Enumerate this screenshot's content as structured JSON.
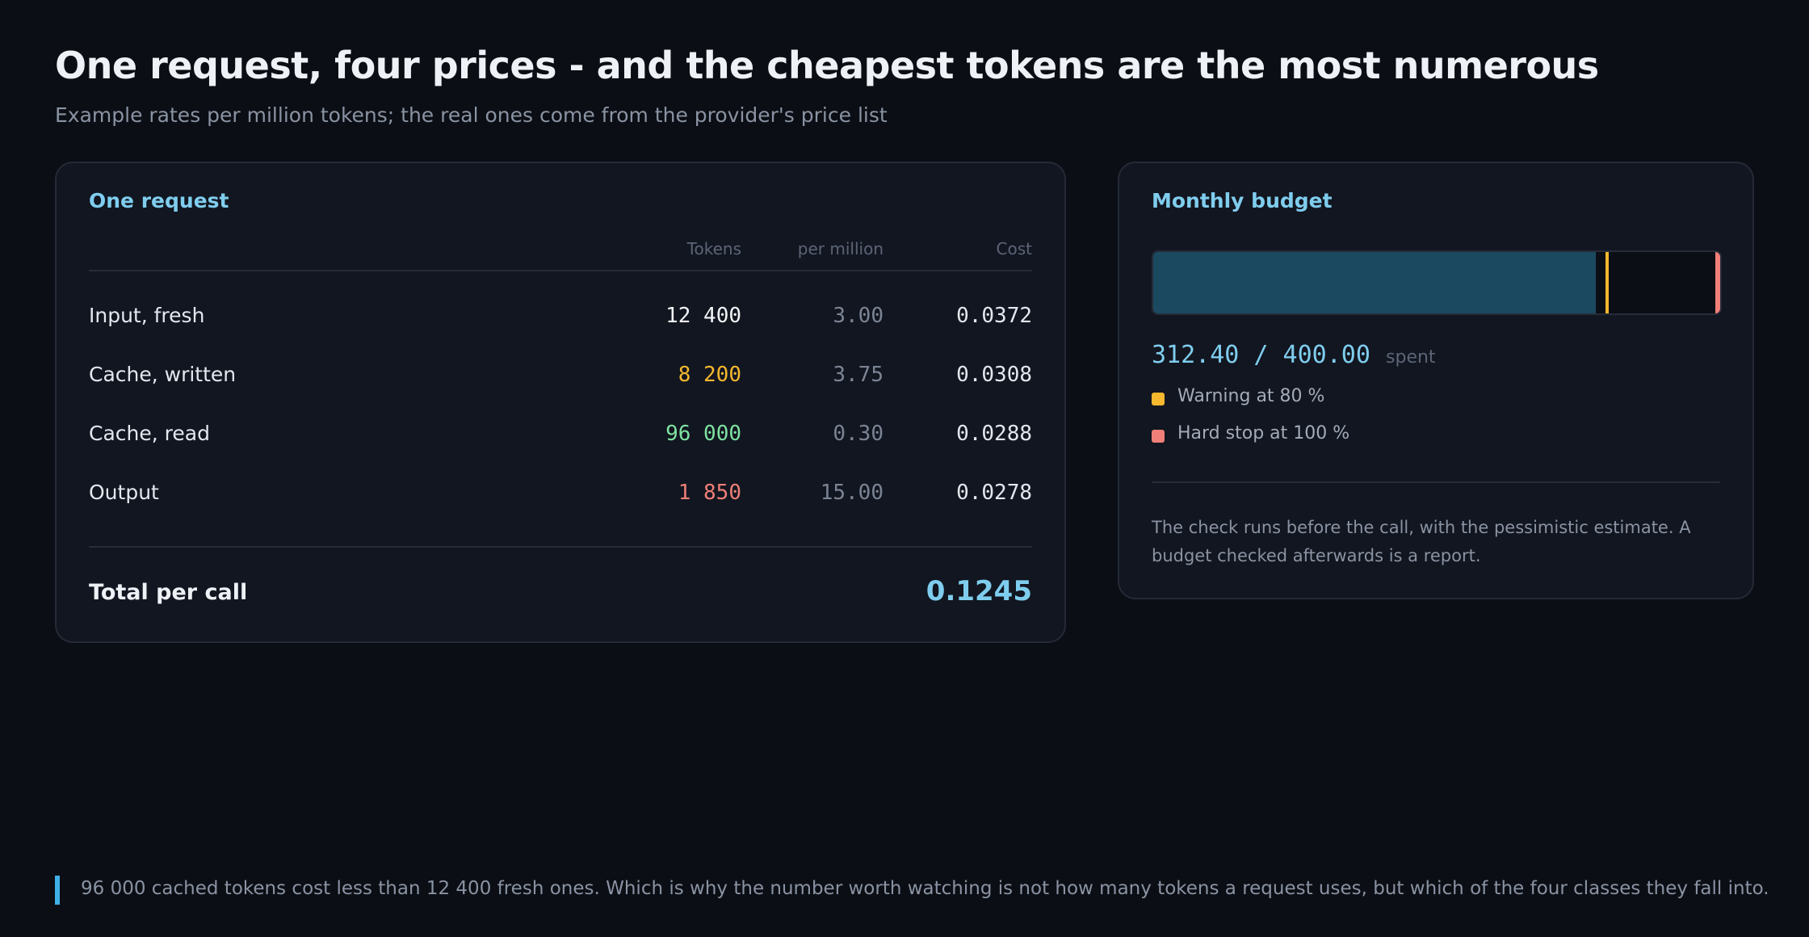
{
  "header": {
    "title": "One request, four prices - and the cheapest tokens are the most numerous",
    "subtitle": "Example rates per million tokens; the real ones come from the provider's price list"
  },
  "request_card": {
    "title": "One request",
    "columns": {
      "tokens": "Tokens",
      "rate": "per million",
      "cost": "Cost"
    },
    "rows": [
      {
        "label": "Input, fresh",
        "tokens": "12 400",
        "rate": "3.00",
        "cost": "0.0372",
        "token_color": "#f1f3f6"
      },
      {
        "label": "Cache, written",
        "tokens": "8 200",
        "rate": "3.75",
        "cost": "0.0308",
        "token_color": "#f5b82e"
      },
      {
        "label": "Cache, read",
        "tokens": "96 000",
        "rate": "0.30",
        "cost": "0.0288",
        "token_color": "#7ee2a0"
      },
      {
        "label": "Output",
        "tokens": "1 850",
        "rate": "15.00",
        "cost": "0.0278",
        "token_color": "#ef7f78"
      }
    ],
    "total_label": "Total per call",
    "total_value": "0.1245"
  },
  "budget_card": {
    "title": "Monthly budget",
    "spent_value": "312.40 / 400.00",
    "spent_label": "spent",
    "spent": 312.4,
    "limit": 400.0,
    "warning_fraction": 0.8,
    "stop_fraction": 1.0,
    "legend": [
      {
        "label": "Warning at 80 %",
        "color": "#f5b82e"
      },
      {
        "label": "Hard stop at 100 %",
        "color": "#ef7f78"
      }
    ],
    "note": "The check runs before the call, with the pessimistic estimate. A budget checked afterwards is a report."
  },
  "footnote": "96 000 cached tokens cost less than 12 400 fresh ones. Which is why the number worth watching is not how many tokens a request uses, but which of the four classes they fall into.",
  "colors": {
    "accent": "#7fcdee",
    "bar_fill": "#1b4a60",
    "warning": "#f5b82e",
    "stop": "#ef7f78",
    "background": "#0b0e14",
    "card": "#121620"
  }
}
